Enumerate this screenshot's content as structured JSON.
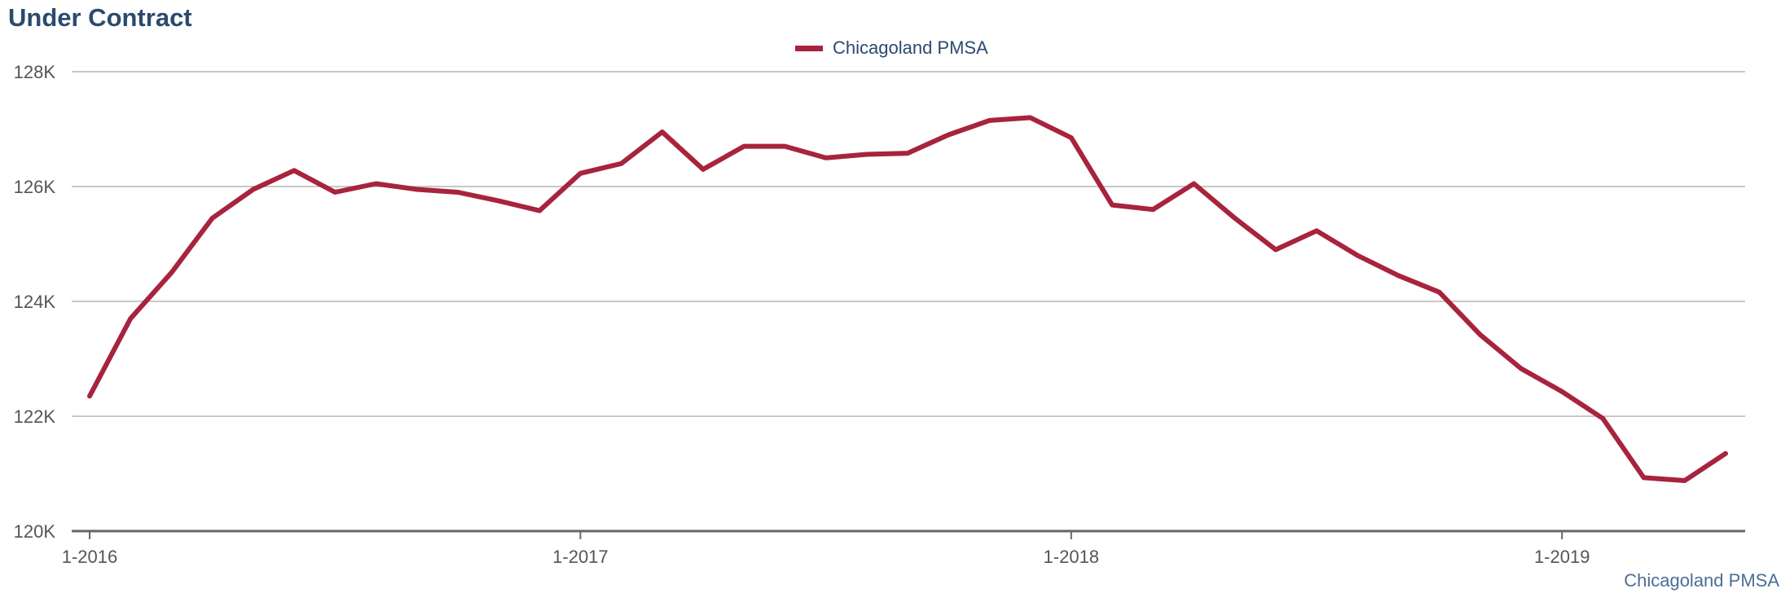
{
  "title": "Under Contract",
  "footer_label": "Chicagoland PMSA",
  "colors": {
    "series": "#a8233d",
    "title": "#2b4a6f",
    "grid": "#b5b5b5",
    "axis": "#666666",
    "footer": "#4a6f95"
  },
  "chart_data": {
    "type": "line",
    "title": "Under Contract",
    "xlabel": "",
    "ylabel": "",
    "ylim": [
      120000,
      128000
    ],
    "yticks": [
      {
        "value": 120000,
        "label": "120K"
      },
      {
        "value": 122000,
        "label": "122K"
      },
      {
        "value": 124000,
        "label": "124K"
      },
      {
        "value": 126000,
        "label": "126K"
      },
      {
        "value": 128000,
        "label": "128K"
      }
    ],
    "xticks": [
      {
        "value": "2016-01",
        "label": "1-2016"
      },
      {
        "value": "2017-01",
        "label": "1-2017"
      },
      {
        "value": "2018-01",
        "label": "1-2018"
      },
      {
        "value": "2019-01",
        "label": "1-2019"
      }
    ],
    "grid": true,
    "legend_position": "top-center",
    "x": [
      "2016-01",
      "2016-02",
      "2016-03",
      "2016-04",
      "2016-05",
      "2016-06",
      "2016-07",
      "2016-08",
      "2016-09",
      "2016-10",
      "2016-11",
      "2016-12",
      "2017-01",
      "2017-02",
      "2017-03",
      "2017-04",
      "2017-05",
      "2017-06",
      "2017-07",
      "2017-08",
      "2017-09",
      "2017-10",
      "2017-11",
      "2017-12",
      "2018-01",
      "2018-02",
      "2018-03",
      "2018-04",
      "2018-05",
      "2018-06",
      "2018-07",
      "2018-08",
      "2018-09",
      "2018-10",
      "2018-11",
      "2018-12",
      "2019-01",
      "2019-02",
      "2019-03",
      "2019-04",
      "2019-05"
    ],
    "series": [
      {
        "name": "Chicagoland PMSA",
        "color": "#a8233d",
        "values": [
          122350,
          123700,
          124500,
          125450,
          125950,
          126280,
          125900,
          126050,
          125950,
          125900,
          125750,
          125580,
          126230,
          126400,
          126950,
          126300,
          126700,
          126700,
          126500,
          126560,
          126580,
          126900,
          127150,
          127200,
          126850,
          125680,
          125600,
          126050,
          125450,
          124900,
          125230,
          124800,
          124450,
          124160,
          123420,
          122830,
          122430,
          121960,
          120930,
          120880,
          121350
        ]
      }
    ]
  }
}
